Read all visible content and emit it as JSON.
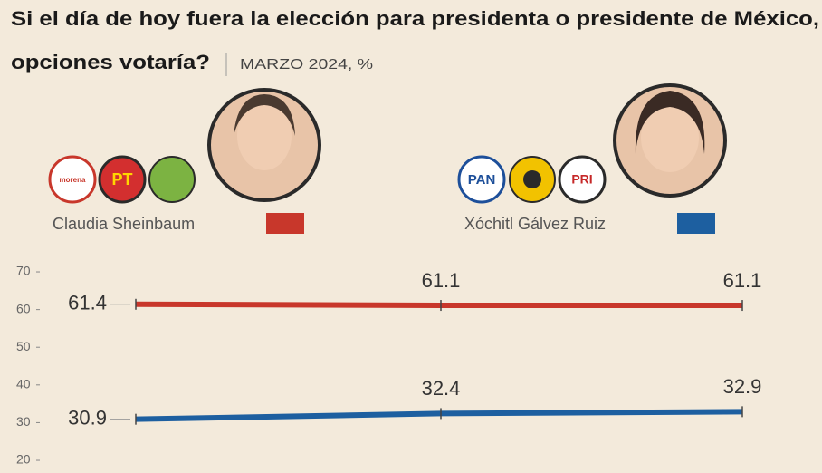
{
  "chart_data": {
    "type": "line",
    "title": [
      "Si el día de hoy fuera la elección para presidenta o presidente de México,",
      "opciones votaría?"
    ],
    "subtitle": "MARZO 2024, %",
    "categories": [
      null,
      null,
      null
    ],
    "series": [
      {
        "name": "Claudia Sheinbaum",
        "color": "#c8372b",
        "logos": [
          "morena",
          "PT"
        ],
        "values": [
          61.4,
          61.1,
          61.1
        ]
      },
      {
        "name": "Xóchitl Gálvez Ruiz",
        "color": "#1d5fa0",
        "logos": [
          "PAN",
          "PRI"
        ],
        "values": [
          30.9,
          32.4,
          32.9
        ]
      }
    ],
    "ylim": [
      17,
      72
    ],
    "yticks": [
      20,
      30,
      40,
      50,
      60,
      70
    ]
  }
}
